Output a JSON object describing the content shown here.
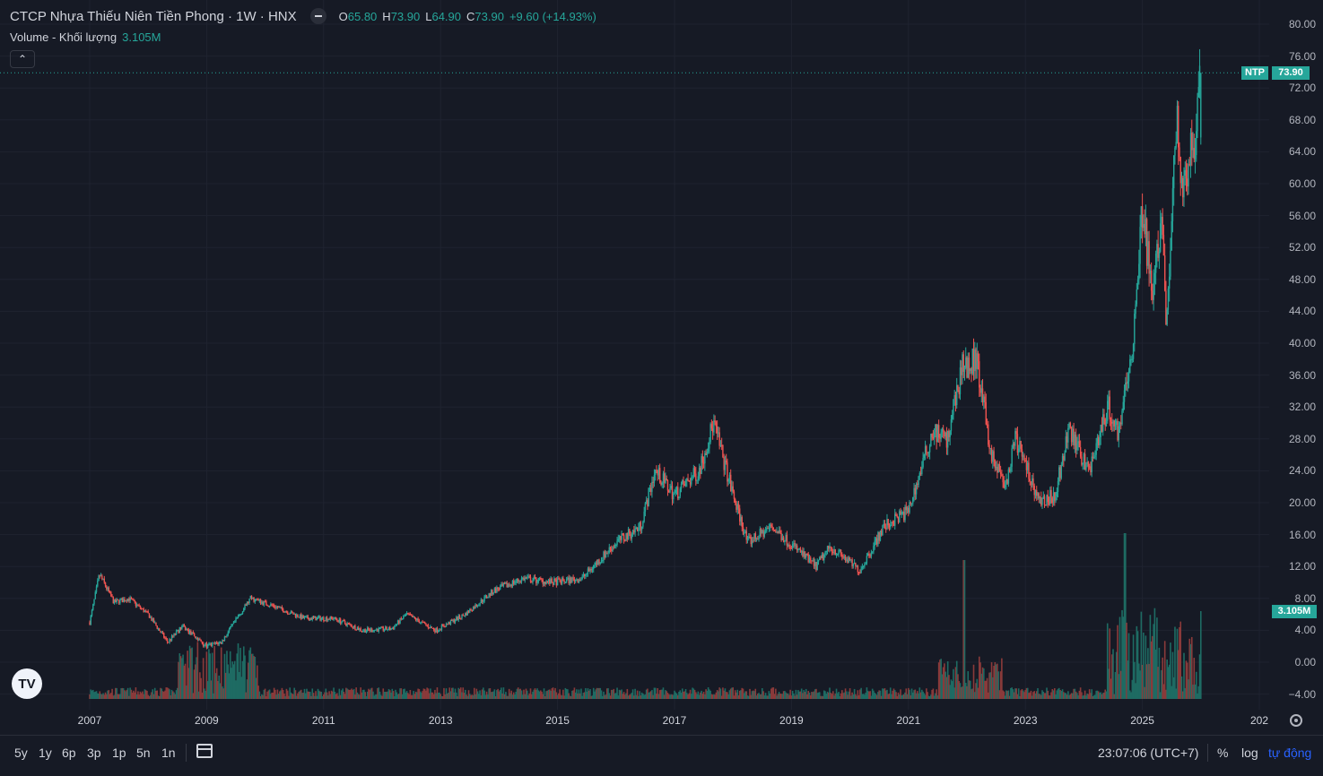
{
  "header": {
    "title": "CTCP Nhựa Thiếu Niên Tiền Phong · 1W · HNX",
    "ohlc": [
      {
        "k": "O",
        "v": "65.80"
      },
      {
        "k": "H",
        "v": "73.90"
      },
      {
        "k": "L",
        "v": "64.90"
      },
      {
        "k": "C",
        "v": "73.90"
      }
    ],
    "change": "+9.60 (+14.93%)",
    "volume_label": "Volume - Khối lượng",
    "volume_value": "3.105M",
    "collapse_icon": "chevron-up-icon"
  },
  "tags": {
    "symbol": "NTP",
    "last_price": "73.90",
    "last_volume": "3.105M"
  },
  "colors": {
    "background": "#161a25",
    "up": "#26a69a",
    "down": "#ef5350",
    "grid": "#1f2330",
    "volume_up": "#1e6b63",
    "volume_down": "#8a3a3a"
  },
  "price_axis": [
    "80.00",
    "76.00",
    "72.00",
    "68.00",
    "64.00",
    "60.00",
    "56.00",
    "52.00",
    "48.00",
    "44.00",
    "40.00",
    "36.00",
    "32.00",
    "28.00",
    "24.00",
    "20.00",
    "16.00",
    "12.00",
    "8.00",
    "4.00",
    "0.00",
    "−4.00"
  ],
  "time_axis": [
    "2007",
    "2009",
    "2011",
    "2013",
    "2015",
    "2017",
    "2019",
    "2021",
    "2023",
    "2025",
    "202"
  ],
  "bottom_bar": {
    "ranges": [
      "5y",
      "1y",
      "6p",
      "3p",
      "1p",
      "5n",
      "1n"
    ],
    "clock": "23:07:06 (UTC+7)",
    "percent": "%",
    "log": "log",
    "auto": "tự động"
  },
  "chart_data": {
    "type": "candlestick",
    "title": "CTCP Nhựa Thiếu Niên Tiền Phong · 1W · HNX",
    "interval": "1W",
    "ylim": [
      -4,
      80
    ],
    "x_range": [
      "2007-01",
      "2026-01"
    ],
    "grid": true,
    "price_path": [
      [
        "2007-01",
        5.0
      ],
      [
        "2007-03",
        11.0
      ],
      [
        "2007-06",
        7.5
      ],
      [
        "2007-09",
        8.0
      ],
      [
        "2008-01",
        6.0
      ],
      [
        "2008-05",
        2.5
      ],
      [
        "2008-08",
        4.5
      ],
      [
        "2009-01",
        2.0
      ],
      [
        "2009-04",
        2.5
      ],
      [
        "2009-10",
        8.0
      ],
      [
        "2010-03",
        7.0
      ],
      [
        "2010-09",
        5.5
      ],
      [
        "2011-03",
        5.5
      ],
      [
        "2011-09",
        4.0
      ],
      [
        "2012-03",
        4.2
      ],
      [
        "2012-06",
        6.0
      ],
      [
        "2012-12",
        4.0
      ],
      [
        "2013-06",
        6.0
      ],
      [
        "2013-12",
        9.0
      ],
      [
        "2014-06",
        10.5
      ],
      [
        "2014-12",
        10.0
      ],
      [
        "2015-06",
        10.5
      ],
      [
        "2016-01",
        15.0
      ],
      [
        "2016-06",
        17.0
      ],
      [
        "2016-09",
        24.0
      ],
      [
        "2017-01",
        21.0
      ],
      [
        "2017-06",
        24.0
      ],
      [
        "2017-09",
        30.0
      ],
      [
        "2018-01",
        21.0
      ],
      [
        "2018-04",
        15.0
      ],
      [
        "2018-09",
        17.0
      ],
      [
        "2019-06",
        12.0
      ],
      [
        "2019-09",
        14.5
      ],
      [
        "2020-03",
        11.5
      ],
      [
        "2020-08",
        17.0
      ],
      [
        "2021-01",
        19.0
      ],
      [
        "2021-06",
        29.0
      ],
      [
        "2021-09",
        28.0
      ],
      [
        "2021-12",
        37.0
      ],
      [
        "2022-03",
        38.0
      ],
      [
        "2022-06",
        26.0
      ],
      [
        "2022-09",
        22.0
      ],
      [
        "2022-11",
        28.0
      ],
      [
        "2023-04",
        20.0
      ],
      [
        "2023-07",
        21.0
      ],
      [
        "2023-10",
        29.0
      ],
      [
        "2024-02",
        24.0
      ],
      [
        "2024-06",
        32.0
      ],
      [
        "2024-08",
        29.0
      ],
      [
        "2024-11",
        40.0
      ],
      [
        "2025-01",
        57.0
      ],
      [
        "2025-03",
        46.0
      ],
      [
        "2025-05",
        55.0
      ],
      [
        "2025-06",
        42.0
      ],
      [
        "2025-08",
        68.0
      ],
      [
        "2025-09",
        60.0
      ],
      [
        "2025-11",
        64.0
      ],
      [
        "2025-12",
        65.8
      ],
      [
        "2026-01",
        73.9
      ]
    ],
    "last": {
      "open": 65.8,
      "high": 73.9,
      "low": 64.9,
      "close": 73.9,
      "change": "+9.60 (+14.93%)",
      "volume": "3.105M"
    }
  }
}
